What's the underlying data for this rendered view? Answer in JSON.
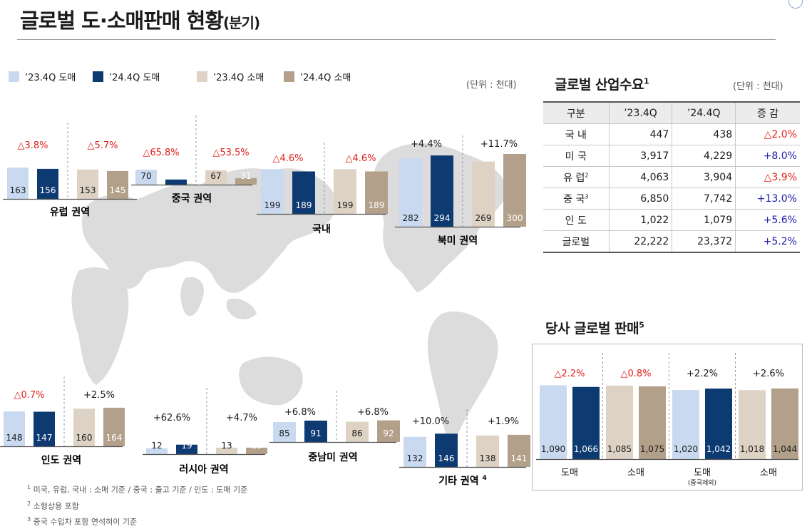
{
  "header": {
    "title": "글로벌 도·소매판매 현황",
    "title_suffix": "(분기)"
  },
  "legend": [
    {
      "label": "’23.4Q 도매",
      "color": "#c9daf0"
    },
    {
      "label": "’24.4Q 도매",
      "color": "#0e3a72"
    },
    {
      "label": "’23.4Q 소매",
      "color": "#ddd2c4"
    },
    {
      "label": "’24.4Q 소매",
      "color": "#b3a08a"
    }
  ],
  "colors": {
    "increase": "#1a1aa8",
    "decrease": "#e0201c",
    "neutral": "#1a1a1a",
    "map": "#dcdcdc",
    "header_fill": "#ececec"
  },
  "units": {
    "map_unit": "(단위 : 천대)",
    "table_unit": "(단위 : 천대)"
  },
  "chart_data": [
    {
      "type": "bar",
      "title": "유럽 권역",
      "categories": [
        "’23.4Q 도매",
        "’24.4Q 도매",
        "’23.4Q 소매",
        "’24.4Q 소매"
      ],
      "values": [
        163,
        156,
        153,
        145
      ],
      "changes": [
        {
          "label": "△3.8%",
          "dir": "down"
        },
        {
          "label": "△5.7%",
          "dir": "down"
        }
      ]
    },
    {
      "type": "bar",
      "title": "중국 권역",
      "categories": [
        "’23.4Q 도매",
        "’24.4Q 도매",
        "’23.4Q 소매",
        "’24.4Q 소매"
      ],
      "values": [
        70,
        24,
        67,
        31
      ],
      "changes": [
        {
          "label": "△65.8%",
          "dir": "down"
        },
        {
          "label": "△53.5%",
          "dir": "down"
        }
      ]
    },
    {
      "type": "bar",
      "title": "국내",
      "categories": [
        "’23.4Q 도매",
        "’24.4Q 도매",
        "’23.4Q 소매",
        "’24.4Q 소매"
      ],
      "values": [
        199,
        189,
        199,
        189
      ],
      "changes": [
        {
          "label": "△4.6%",
          "dir": "down"
        },
        {
          "label": "△4.6%",
          "dir": "down"
        }
      ]
    },
    {
      "type": "bar",
      "title": "북미 권역",
      "categories": [
        "’23.4Q 도매",
        "’24.4Q 도매",
        "’23.4Q 소매",
        "’24.4Q 소매"
      ],
      "values": [
        282,
        294,
        269,
        300
      ],
      "changes": [
        {
          "label": "+4.4%",
          "dir": "up"
        },
        {
          "label": "+11.7%",
          "dir": "up"
        }
      ]
    },
    {
      "type": "bar",
      "title": "인도 권역",
      "categories": [
        "’23.4Q 도매",
        "’24.4Q 도매",
        "’23.4Q 소매",
        "’24.4Q 소매"
      ],
      "values": [
        148,
        147,
        160,
        164
      ],
      "changes": [
        {
          "label": "△0.7%",
          "dir": "down"
        },
        {
          "label": "+2.5%",
          "dir": "up"
        }
      ]
    },
    {
      "type": "bar",
      "title": "러시아 권역",
      "categories": [
        "’23.4Q 도매",
        "’24.4Q 도매",
        "’23.4Q 소매",
        "’24.4Q 소매"
      ],
      "values": [
        12,
        19,
        13,
        13
      ],
      "changes": [
        {
          "label": "+62.6%",
          "dir": "up"
        },
        {
          "label": "+4.7%",
          "dir": "up"
        }
      ]
    },
    {
      "type": "bar",
      "title": "중남미 권역",
      "categories": [
        "’23.4Q 도매",
        "’24.4Q 도매",
        "’23.4Q 소매",
        "’24.4Q 소매"
      ],
      "values": [
        85,
        91,
        86,
        92
      ],
      "changes": [
        {
          "label": "+6.8%",
          "dir": "up"
        },
        {
          "label": "+6.8%",
          "dir": "up"
        }
      ]
    },
    {
      "type": "bar",
      "title": "기타 권역",
      "title_sup": "4",
      "categories": [
        "’23.4Q 도매",
        "’24.4Q 도매",
        "’23.4Q 소매",
        "’24.4Q 소매"
      ],
      "values": [
        132,
        146,
        138,
        141
      ],
      "changes": [
        {
          "label": "+10.0%",
          "dir": "up"
        },
        {
          "label": "+1.9%",
          "dir": "up"
        }
      ]
    },
    {
      "type": "bar",
      "title": "당사 글로벌 판매",
      "groups": [
        {
          "label": "도매",
          "values": [
            1090,
            1066
          ],
          "change": {
            "label": "△2.2%",
            "dir": "down"
          }
        },
        {
          "label": "소매",
          "values": [
            1085,
            1075
          ],
          "change": {
            "label": "△0.8%",
            "dir": "down"
          }
        },
        {
          "label": "도매",
          "sublabel": "(중국제외)",
          "values": [
            1020,
            1042
          ],
          "change": {
            "label": "+2.2%",
            "dir": "up"
          }
        },
        {
          "label": "소매",
          "values": [
            1018,
            1044
          ],
          "change": {
            "label": "+2.6%",
            "dir": "up"
          }
        }
      ]
    }
  ],
  "demand": {
    "title": "글로벌 산업수요",
    "title_sup": "1",
    "headers": [
      "구분",
      "’23.4Q",
      "’24.4Q",
      "증 감"
    ],
    "rows": [
      {
        "region": "국 내",
        "sup": "",
        "q23": "447",
        "q24": "438",
        "change": "△2.0%",
        "dir": "down"
      },
      {
        "region": "미 국",
        "sup": "",
        "q23": "3,917",
        "q24": "4,229",
        "change": "+8.0%",
        "dir": "up"
      },
      {
        "region": "유 럽",
        "sup": "2",
        "q23": "4,063",
        "q24": "3,904",
        "change": "△3.9%",
        "dir": "down"
      },
      {
        "region": "중 국",
        "sup": "3",
        "q23": "6,850",
        "q24": "7,742",
        "change": "+13.0%",
        "dir": "up"
      },
      {
        "region": "인 도",
        "sup": "",
        "q23": "1,022",
        "q24": "1,079",
        "change": "+5.6%",
        "dir": "up"
      },
      {
        "region": "글로벌",
        "sup": "",
        "q23": "22,222",
        "q24": "23,372",
        "change": "+5.2%",
        "dir": "up"
      }
    ]
  },
  "sales": {
    "title": "당사 글로벌 판매",
    "title_sup": "5"
  },
  "footnotes": [
    {
      "sup": "1",
      "text": " 미국, 유럽, 국내 : 소매 기준 / 중국 : 출고 기준 / 인도 : 도매 기준"
    },
    {
      "sup": "2",
      "text": " 소형상용 포함"
    },
    {
      "sup": "3",
      "text": " 중국 수입차 포함 연석혀이 기준"
    }
  ]
}
